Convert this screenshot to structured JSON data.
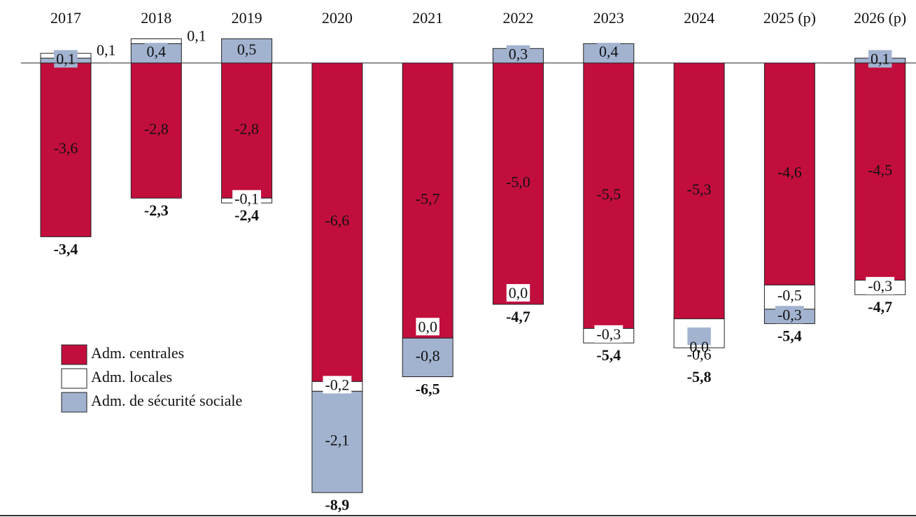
{
  "chart_data": {
    "type": "bar",
    "stacked": true,
    "categories": [
      "2017",
      "2018",
      "2019",
      "2020",
      "2021",
      "2022",
      "2023",
      "2024",
      "2025 (p)",
      "2026 (p)"
    ],
    "series": [
      {
        "name": "Adm. centrales",
        "color": "#c20e3d",
        "values": [
          -3.6,
          -2.8,
          -2.8,
          -6.6,
          -5.7,
          -5.0,
          -5.5,
          -5.3,
          -4.6,
          -4.5
        ],
        "value_labels": [
          "-3,6",
          "-2,8",
          "-2,8",
          "-6,6",
          "-5,7",
          "-5,0",
          "-5,5",
          "-5,3",
          "-4,6",
          "-4,5"
        ]
      },
      {
        "name": "Adm. locales",
        "color": "#ffffff",
        "values": [
          0.1,
          0.1,
          -0.1,
          -0.2,
          0.0,
          0.0,
          -0.3,
          -0.6,
          -0.5,
          -0.3
        ],
        "value_labels": [
          "0,1",
          "0,1",
          "-0,1",
          "-0,2",
          "0,0",
          "0,0",
          "-0,3",
          "-0,6",
          "-0,5",
          "-0,3"
        ]
      },
      {
        "name": "Adm. de sécurité sociale",
        "color": "#a2b3d0",
        "values": [
          0.1,
          0.4,
          0.5,
          -2.1,
          -0.8,
          0.3,
          0.4,
          0.0,
          -0.3,
          0.1
        ],
        "value_labels": [
          "0,1",
          "0,4",
          "0,5",
          "-2,1",
          "-0,8",
          "0,3",
          "0,4",
          "0,0",
          "-0,3",
          "0,1"
        ]
      }
    ],
    "totals": [
      -3.4,
      -2.3,
      -2.4,
      -8.9,
      -6.5,
      -4.7,
      -5.4,
      -5.8,
      -5.4,
      -4.7
    ],
    "total_labels": [
      "-3,4",
      "-2,3",
      "-2,4",
      "-8,9",
      "-6,5",
      "-4,7",
      "-5,4",
      "-5,8",
      "-5,4",
      "-4,7"
    ]
  }
}
